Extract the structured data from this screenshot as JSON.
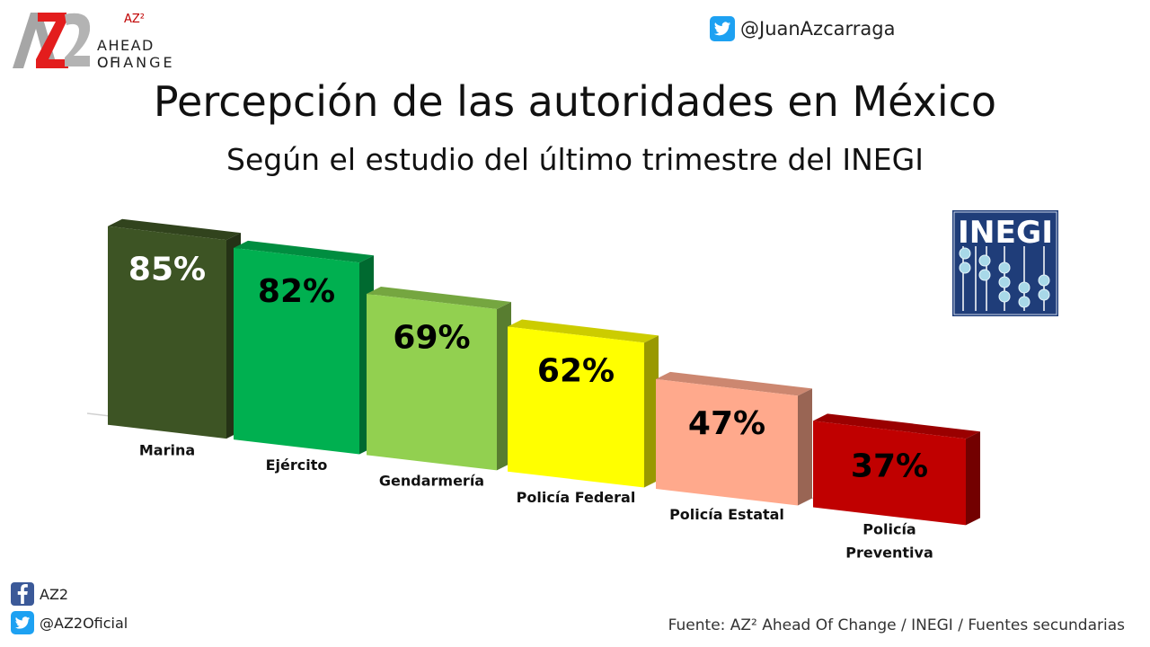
{
  "logo": {
    "superscript": "AZ²",
    "line1": "AHEAD OF",
    "line2": "CHANGE"
  },
  "twitter_top": {
    "handle": "@JuanAzcarraga",
    "icon": "twitter-icon"
  },
  "title": "Percepción de las autoridades en México",
  "subtitle": "Según el estudio del último trimestre del INEGI",
  "inegi_logo": {
    "text": "INEGI",
    "colors": {
      "background": "#1f3d79",
      "text": "#ffffff",
      "beads": "#a8d8e8"
    }
  },
  "chart_data": {
    "type": "bar",
    "categories": [
      "Marina",
      "Ejército",
      "Gendarmería",
      "Policía Federal",
      "Policía Estatal",
      "Policía Preventiva"
    ],
    "category_lines": [
      [
        "Marina"
      ],
      [
        "Ejército"
      ],
      [
        "Gendarmería"
      ],
      [
        "Policía Federal"
      ],
      [
        "Policía Estatal"
      ],
      [
        "Policía",
        "Preventiva"
      ]
    ],
    "values": [
      85,
      82,
      69,
      62,
      47,
      37
    ],
    "labels": [
      "85%",
      "82%",
      "69%",
      "62%",
      "47%",
      "37%"
    ],
    "colors": [
      "#3d5424",
      "#00b050",
      "#92d050",
      "#ffff00",
      "#ffa98c",
      "#c00000"
    ],
    "label_colors": [
      "#ffffff",
      "#000000",
      "#000000",
      "#000000",
      "#000000",
      "#000000"
    ],
    "title": "",
    "xlabel": "",
    "ylabel": "",
    "ylim": [
      0,
      100
    ],
    "grid": false,
    "legend": "none",
    "style": "3d-perspective"
  },
  "social": {
    "facebook": {
      "handle": "AZ2",
      "icon": "facebook-icon"
    },
    "twitter": {
      "handle": "@AZ2Oficial",
      "icon": "twitter-icon"
    }
  },
  "source": "Fuente: AZ² Ahead Of Change / INEGI / Fuentes secundarias"
}
